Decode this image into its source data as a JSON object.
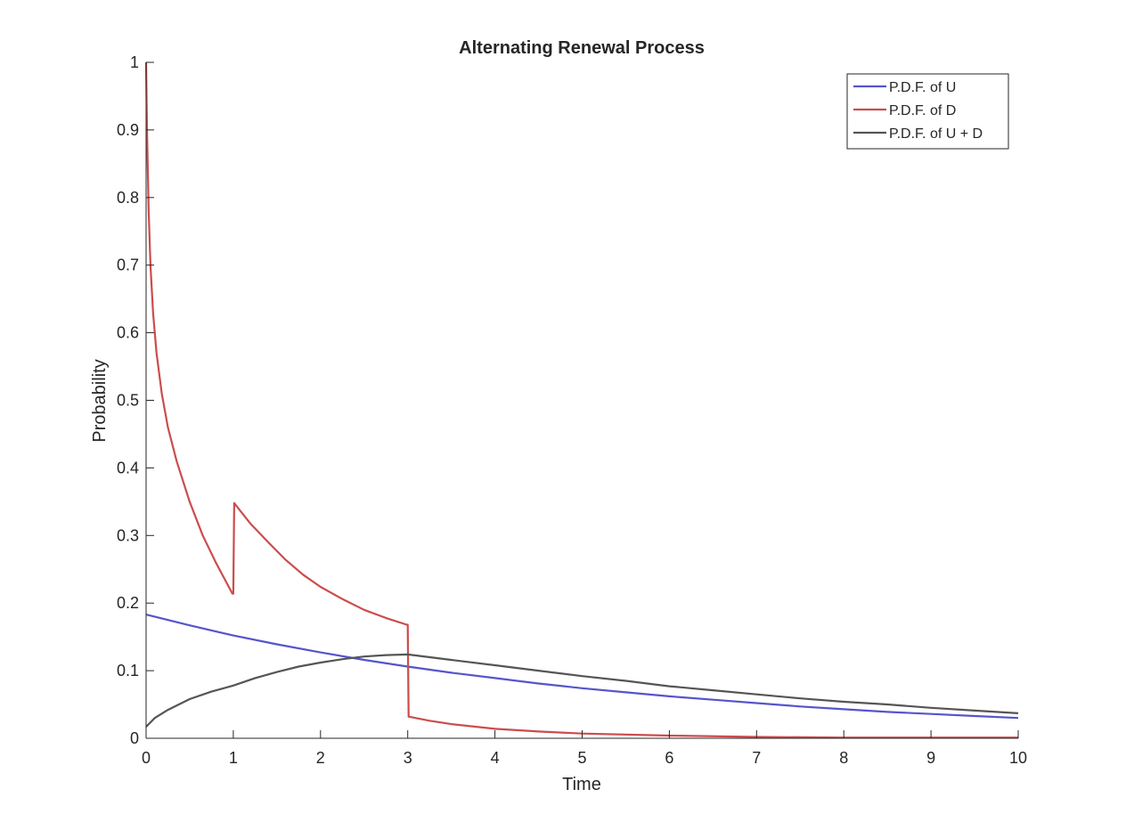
{
  "chart_data": {
    "type": "line",
    "title": "Alternating Renewal Process",
    "xlabel": "Time",
    "ylabel": "Probability",
    "xlim": [
      0,
      10
    ],
    "ylim": [
      0,
      1
    ],
    "xticks": [
      "0",
      "1",
      "2",
      "3",
      "4",
      "5",
      "6",
      "7",
      "8",
      "9",
      "10"
    ],
    "yticks": [
      "0",
      "0.1",
      "0.2",
      "0.3",
      "0.4",
      "0.5",
      "0.6",
      "0.7",
      "0.8",
      "0.9",
      "1"
    ],
    "grid": false,
    "legend_position": "top-right",
    "series": [
      {
        "name": "P.D.F. of U",
        "color": "#5555cc",
        "x": [
          0,
          0.5,
          1,
          1.5,
          2,
          2.5,
          3,
          3.5,
          4,
          4.5,
          5,
          5.5,
          6,
          6.5,
          7,
          7.5,
          8,
          8.5,
          9,
          9.5,
          10
        ],
        "y": [
          0.183,
          0.167,
          0.152,
          0.139,
          0.127,
          0.116,
          0.106,
          0.097,
          0.089,
          0.081,
          0.074,
          0.068,
          0.062,
          0.057,
          0.052,
          0.047,
          0.043,
          0.039,
          0.036,
          0.033,
          0.03
        ]
      },
      {
        "name": "P.D.F. of D",
        "color": "#cc4c4c",
        "x": [
          0,
          0.01,
          0.03,
          0.05,
          0.08,
          0.12,
          0.18,
          0.25,
          0.35,
          0.5,
          0.65,
          0.8,
          0.99,
          1.0,
          1.01,
          1.2,
          1.4,
          1.6,
          1.8,
          2.0,
          2.25,
          2.5,
          2.75,
          2.99,
          3.0,
          3.01,
          3.25,
          3.5,
          4.0,
          4.5,
          5.0,
          6.0,
          7.0,
          8.0,
          9.0,
          10.0
        ],
        "y": [
          1.0,
          0.9,
          0.78,
          0.7,
          0.63,
          0.57,
          0.51,
          0.46,
          0.41,
          0.35,
          0.3,
          0.26,
          0.214,
          0.214,
          0.348,
          0.317,
          0.29,
          0.264,
          0.242,
          0.224,
          0.206,
          0.19,
          0.178,
          0.168,
          0.168,
          0.032,
          0.026,
          0.021,
          0.014,
          0.01,
          0.007,
          0.004,
          0.002,
          0.001,
          0.001,
          0.001
        ]
      },
      {
        "name": "P.D.F. of U + D",
        "color": "#555555",
        "x": [
          0,
          0.1,
          0.25,
          0.5,
          0.75,
          1.0,
          1.25,
          1.5,
          1.75,
          2.0,
          2.25,
          2.5,
          2.75,
          3.0,
          3.5,
          4.0,
          4.5,
          5.0,
          5.5,
          6.0,
          6.5,
          7.0,
          7.5,
          8.0,
          8.5,
          9.0,
          9.5,
          10.0
        ],
        "y": [
          0.017,
          0.03,
          0.042,
          0.058,
          0.069,
          0.078,
          0.089,
          0.098,
          0.106,
          0.112,
          0.117,
          0.121,
          0.123,
          0.124,
          0.116,
          0.108,
          0.1,
          0.092,
          0.085,
          0.077,
          0.071,
          0.065,
          0.059,
          0.054,
          0.05,
          0.045,
          0.041,
          0.037
        ]
      }
    ]
  }
}
